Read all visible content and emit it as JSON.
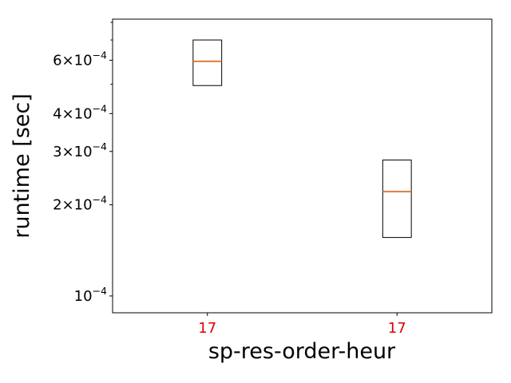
{
  "chart_data": {
    "type": "box",
    "xlabel": "sp-res-order-heur",
    "ylabel": "runtime [sec]",
    "yscale": "log",
    "ylim": [
      8.8e-05,
      0.00082
    ],
    "y_major_ticks": [
      {
        "value": 0.0001,
        "mantissa": "",
        "exp": "−4"
      },
      {
        "value": 0.0002,
        "mantissa": "2",
        "exp": "−4"
      },
      {
        "value": 0.0003,
        "mantissa": "3",
        "exp": "−4"
      },
      {
        "value": 0.0004,
        "mantissa": "4",
        "exp": "−4"
      },
      {
        "value": 0.0006,
        "mantissa": "6",
        "exp": "−4"
      }
    ],
    "y_minor_ticks": [
      0.0005,
      0.0007,
      0.0008
    ],
    "times_sign": "×",
    "base": "10",
    "categories": [
      "17",
      "17"
    ],
    "category_label_color": "#dd0000",
    "box_color": "#000000",
    "median_color": "#e07b39",
    "boxes": [
      {
        "q1": 0.000495,
        "median": 0.000595,
        "q3": 0.0007
      },
      {
        "q1": 0.000156,
        "median": 0.000221,
        "q3": 0.000281
      }
    ],
    "grid": false
  }
}
